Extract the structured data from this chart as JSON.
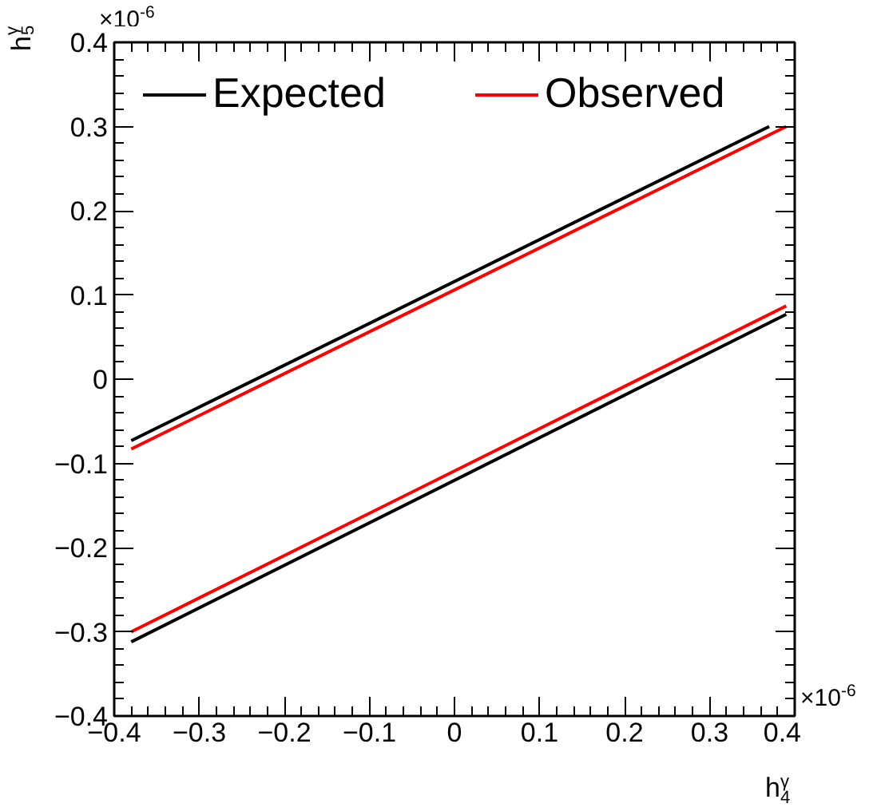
{
  "chart_data": {
    "type": "line",
    "xlabel": "h$^{γ}$$_{4}$",
    "ylabel": "h$^{γ}$$_{5}$",
    "series": [
      {
        "name": "Expected",
        "color": "#000000",
        "x": [
          -0.38,
          0.37
        ],
        "values": [
          -0.073,
          0.3
        ]
      },
      {
        "name": "Observed",
        "color": "#ff0000",
        "x": [
          -0.38,
          0.39
        ],
        "values": [
          -0.083,
          0.3
        ]
      },
      {
        "color": "#000000",
        "x": [
          -0.38,
          0.39
        ],
        "values": [
          -0.312,
          0.077
        ]
      },
      {
        "color": "#ff0000",
        "x": [
          -0.38,
          0.39
        ],
        "values": [
          -0.3,
          0.087
        ]
      }
    ],
    "xlim": [
      -0.4,
      0.4
    ],
    "ylim": [
      -0.4,
      0.4
    ],
    "xticks": [
      {
        "value": -0.4,
        "label": "−0.4"
      },
      {
        "value": -0.3,
        "label": "−0.3"
      },
      {
        "value": -0.2,
        "label": "−0.2"
      },
      {
        "value": -0.1,
        "label": "−0.1"
      },
      0,
      0.1,
      0.2,
      0.3,
      0.4
    ],
    "yticks": [
      {
        "value": -0.4,
        "label": "−0.4"
      },
      {
        "value": -0.3,
        "label": "−0.3"
      },
      {
        "value": -0.2,
        "label": "−0.2"
      },
      {
        "value": -0.1,
        "label": "−0.1"
      },
      0,
      0.1,
      0.2,
      0.3,
      0.4
    ],
    "annotations": [
      "×10$^{-6}$",
      "×10$^{-6}$"
    ],
    "legend": "top",
    "line_style": "solid",
    "grid": false
  }
}
